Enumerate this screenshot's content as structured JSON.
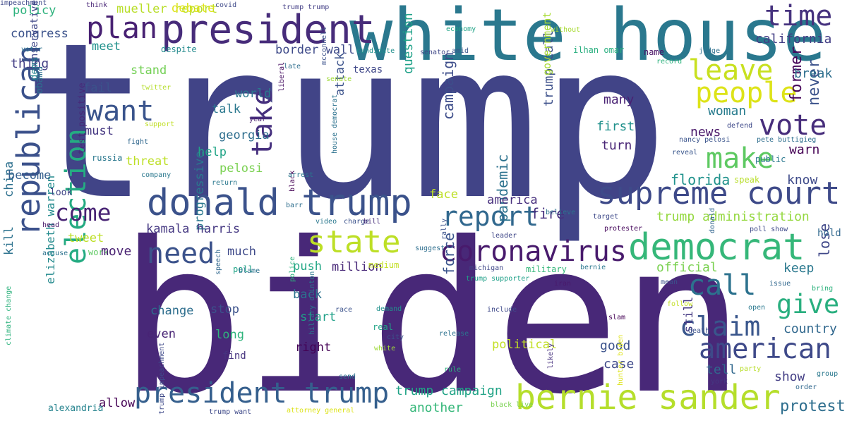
{
  "words": [
    {
      "text": "trump",
      "color": "#414487",
      "vertical": false
    },
    {
      "text": "biden",
      "color": "#482878",
      "vertical": false
    },
    {
      "text": "white house",
      "color": "#2a788e",
      "vertical": false
    },
    {
      "text": "president",
      "color": "#472c7a",
      "vertical": false
    },
    {
      "text": "donald trump",
      "color": "#3b528b",
      "vertical": false
    },
    {
      "text": "supreme court",
      "color": "#3e4a89",
      "vertical": false
    },
    {
      "text": "bernie sander",
      "color": "#b5de2b",
      "vertical": false
    },
    {
      "text": "president trump",
      "color": "#355f8d",
      "vertical": false
    },
    {
      "text": "republican",
      "color": "#3b518b",
      "vertical": true
    },
    {
      "text": "democrat",
      "color": "#35b779",
      "vertical": false
    },
    {
      "text": "coronavirus",
      "color": "#481a6c",
      "vertical": false
    },
    {
      "text": "american",
      "color": "#3e4989",
      "vertical": false
    },
    {
      "text": "time",
      "color": "#46327e",
      "vertical": false
    },
    {
      "text": "plan",
      "color": "#482173",
      "vertical": false
    },
    {
      "text": "people",
      "color": "#dde318",
      "vertical": false
    },
    {
      "text": "vote",
      "color": "#472d7b",
      "vertical": false
    },
    {
      "text": "make",
      "color": "#5ec962",
      "vertical": false
    },
    {
      "text": "call",
      "color": "#2c728e",
      "vertical": false
    },
    {
      "text": "claim",
      "color": "#39568c",
      "vertical": false
    },
    {
      "text": "give",
      "color": "#29af7f",
      "vertical": false
    },
    {
      "text": "report",
      "color": "#31688e",
      "vertical": false
    },
    {
      "text": "state",
      "color": "#bddf26",
      "vertical": false
    },
    {
      "text": "election",
      "color": "#25ab82",
      "vertical": true
    },
    {
      "text": "want",
      "color": "#3a548c",
      "vertical": false
    },
    {
      "text": "need",
      "color": "#3b528b",
      "vertical": false
    },
    {
      "text": "come",
      "color": "#482374",
      "vertical": false
    },
    {
      "text": "take",
      "color": "#46307e",
      "vertical": true
    },
    {
      "text": "leave",
      "color": "#c8e020",
      "vertical": false
    },
    {
      "text": "protest",
      "color": "#2e6e8e",
      "vertical": false
    },
    {
      "text": "country",
      "color": "#31688e",
      "vertical": false
    },
    {
      "text": "former",
      "color": "#450559",
      "vertical": true
    },
    {
      "text": "never",
      "color": "#3b528b",
      "vertical": true
    },
    {
      "text": "california",
      "color": "#433e85",
      "vertical": false
    },
    {
      "text": "break",
      "color": "#2e6f8e",
      "vertical": false
    },
    {
      "text": "florida",
      "color": "#20928c",
      "vertical": false
    },
    {
      "text": "know",
      "color": "#3e4a89",
      "vertical": false
    },
    {
      "text": "warn",
      "color": "#440154",
      "vertical": false
    },
    {
      "text": "woman",
      "color": "#287c8e",
      "vertical": false
    },
    {
      "text": "news",
      "color": "#481769",
      "vertical": false
    },
    {
      "text": "many",
      "color": "#482173",
      "vertical": false
    },
    {
      "text": "first",
      "color": "#21918c",
      "vertical": false
    },
    {
      "text": "turn",
      "color": "#482475",
      "vertical": false
    },
    {
      "text": "trump administration",
      "color": "#95d840",
      "vertical": false
    },
    {
      "text": "official",
      "color": "#7ad151",
      "vertical": false
    },
    {
      "text": "keep",
      "color": "#2a788e",
      "vertical": false
    },
    {
      "text": "lose",
      "color": "#3f4788",
      "vertical": true
    },
    {
      "text": "hold",
      "color": "#31688e",
      "vertical": false
    },
    {
      "text": "still",
      "color": "#443983",
      "vertical": true
    },
    {
      "text": "tell",
      "color": "#31688e",
      "vertical": false
    },
    {
      "text": "show",
      "color": "#433e85",
      "vertical": false
    },
    {
      "text": "good",
      "color": "#3b528b",
      "vertical": false
    },
    {
      "text": "case",
      "color": "#3e4989",
      "vertical": false
    },
    {
      "text": "political",
      "color": "#c2df23",
      "vertical": false
    },
    {
      "text": "trump campaign",
      "color": "#20a386",
      "vertical": false
    },
    {
      "text": "another",
      "color": "#35b779",
      "vertical": false
    },
    {
      "text": "pandemic",
      "color": "#2c728e",
      "vertical": true
    },
    {
      "text": "trump call",
      "color": "#3c4f8a",
      "vertical": true
    },
    {
      "text": "government",
      "color": "#a8db34",
      "vertical": true
    },
    {
      "text": "campaign",
      "color": "#3d4d8a",
      "vertical": true
    },
    {
      "text": "force",
      "color": "#3a548c",
      "vertical": true
    },
    {
      "text": "america",
      "color": "#472f7d",
      "vertical": false
    },
    {
      "text": "fire",
      "color": "#46307e",
      "vertical": false
    },
    {
      "text": "face",
      "color": "#bddf26",
      "vertical": false
    },
    {
      "text": "question",
      "color": "#1fa188",
      "vertical": true
    },
    {
      "text": "attack",
      "color": "#3b528b",
      "vertical": true
    },
    {
      "text": "texas",
      "color": "#3f4788",
      "vertical": false
    },
    {
      "text": "progressive",
      "color": "#2a788e",
      "vertical": true
    },
    {
      "text": "kamala harris",
      "color": "#453882",
      "vertical": false
    },
    {
      "text": "tweet",
      "color": "#bddf26",
      "vertical": false
    },
    {
      "text": "work",
      "color": "#5ec962",
      "vertical": false
    },
    {
      "text": "much",
      "color": "#3e4989",
      "vertical": false
    },
    {
      "text": "push",
      "color": "#22a785",
      "vertical": false
    },
    {
      "text": "poll",
      "color": "#20a486",
      "vertical": false
    },
    {
      "text": "million",
      "color": "#482878",
      "vertical": false
    },
    {
      "text": "back",
      "color": "#2c728e",
      "vertical": false
    },
    {
      "text": "start",
      "color": "#1fa088",
      "vertical": false
    },
    {
      "text": "stop",
      "color": "#3b528b",
      "vertical": false
    },
    {
      "text": "change",
      "color": "#2e6e8e",
      "vertical": false
    },
    {
      "text": "even",
      "color": "#482475",
      "vertical": false
    },
    {
      "text": "long",
      "color": "#2fb47c",
      "vertical": false
    },
    {
      "text": "right",
      "color": "#440154",
      "vertical": false
    },
    {
      "text": "find",
      "color": "#46337f",
      "vertical": false
    },
    {
      "text": "allow",
      "color": "#440154",
      "vertical": false
    },
    {
      "text": "move",
      "color": "#482071",
      "vertical": false
    },
    {
      "text": "elizabeth warren",
      "color": "#238a8d",
      "vertical": true
    },
    {
      "text": "kill",
      "color": "#2c728e",
      "vertical": true
    },
    {
      "text": "china",
      "color": "#2d708e",
      "vertical": true
    },
    {
      "text": "become",
      "color": "#355f8d",
      "vertical": false
    },
    {
      "text": "look",
      "color": "#414487",
      "vertical": false
    },
    {
      "text": "alexandria",
      "color": "#25838e",
      "vertical": false
    },
    {
      "text": "policy",
      "color": "#2db27d",
      "vertical": false
    },
    {
      "text": "congress",
      "color": "#3b528b",
      "vertical": false
    },
    {
      "text": "voter",
      "color": "#2c728e",
      "vertical": false
    },
    {
      "text": "thing",
      "color": "#433e85",
      "vertical": false
    },
    {
      "text": "conservative",
      "color": "#3f4788",
      "vertical": true
    },
    {
      "text": "dems",
      "color": "#25858e",
      "vertical": true
    },
    {
      "text": "obama",
      "color": "#2d708e",
      "vertical": true
    },
    {
      "text": "test positive",
      "color": "#482878",
      "vertical": true
    },
    {
      "text": "russia",
      "color": "#2a788e",
      "vertical": false
    },
    {
      "text": "threat",
      "color": "#bddf26",
      "vertical": false
    },
    {
      "text": "fight",
      "color": "#31688e",
      "vertical": false
    },
    {
      "text": "company",
      "color": "#2a788e",
      "vertical": false
    },
    {
      "text": "must",
      "color": "#453781",
      "vertical": false
    },
    {
      "text": "support",
      "color": "#c0df25",
      "vertical": false
    },
    {
      "text": "fail",
      "color": "#3b528b",
      "vertical": false
    },
    {
      "text": "twitter",
      "color": "#b5de2b",
      "vertical": false
    },
    {
      "text": "stand",
      "color": "#73d055",
      "vertical": false
    },
    {
      "text": "meet",
      "color": "#21918c",
      "vertical": false
    },
    {
      "text": "despite",
      "color": "#238a8d",
      "vertical": false
    },
    {
      "text": "mueller report",
      "color": "#b8de29",
      "vertical": false
    },
    {
      "text": "debate",
      "color": "#dde318",
      "vertical": false
    },
    {
      "text": "think",
      "color": "#482576",
      "vertical": false
    },
    {
      "text": "covid",
      "color": "#3e4989",
      "vertical": false
    },
    {
      "text": "trump trump",
      "color": "#433e85",
      "vertical": false
    },
    {
      "text": "border wall",
      "color": "#3e4a89",
      "vertical": false
    },
    {
      "text": "candidate",
      "color": "#218f8d",
      "vertical": false
    },
    {
      "text": "senator",
      "color": "#3f4788",
      "vertical": false
    },
    {
      "text": "world",
      "color": "#2a788e",
      "vertical": false
    },
    {
      "text": "talk",
      "color": "#2a788e",
      "vertical": false
    },
    {
      "text": "year",
      "color": "#481f70",
      "vertical": false
    },
    {
      "text": "georgia",
      "color": "#2e6e8e",
      "vertical": false
    },
    {
      "text": "help",
      "color": "#20a486",
      "vertical": false
    },
    {
      "text": "pelosi",
      "color": "#7ad151",
      "vertical": false
    },
    {
      "text": "late",
      "color": "#2e6e8e",
      "vertical": false
    },
    {
      "text": "liberal",
      "color": "#471063",
      "vertical": true
    },
    {
      "text": "mcconnell",
      "color": "#3b528b",
      "vertical": true
    },
    {
      "text": "senate",
      "color": "#a0da39",
      "vertical": false
    },
    {
      "text": "house democrat",
      "color": "#2c728e",
      "vertical": true
    },
    {
      "text": "economy",
      "color": "#20a386",
      "vertical": false
    },
    {
      "text": "amid",
      "color": "#39568c",
      "vertical": false
    },
    {
      "text": "ilhan omar",
      "color": "#29af7f",
      "vertical": false
    },
    {
      "text": "name",
      "color": "#471063",
      "vertical": false
    },
    {
      "text": "record",
      "color": "#2db27d",
      "vertical": false
    },
    {
      "text": "judge",
      "color": "#2d708e",
      "vertical": false
    },
    {
      "text": "nancy pelosi",
      "color": "#3a548c",
      "vertical": false
    },
    {
      "text": "pete buttigieg",
      "color": "#2e6e8e",
      "vertical": false
    },
    {
      "text": "reveal",
      "color": "#39568c",
      "vertical": false
    },
    {
      "text": "public",
      "color": "#2a788e",
      "vertical": false
    },
    {
      "text": "defend",
      "color": "#3e4989",
      "vertical": false
    },
    {
      "text": "speak",
      "color": "#b8de29",
      "vertical": false
    },
    {
      "text": "without",
      "color": "#a8db34",
      "vertical": false
    },
    {
      "text": "donald",
      "color": "#32658e",
      "vertical": true
    },
    {
      "text": "poll show",
      "color": "#3e4989",
      "vertical": false
    },
    {
      "text": "protester",
      "color": "#46085c",
      "vertical": false
    },
    {
      "text": "target",
      "color": "#3e4989",
      "vertical": false
    },
    {
      "text": "believe",
      "color": "#2c728e",
      "vertical": false
    },
    {
      "text": "rally",
      "color": "#3b528b",
      "vertical": true
    },
    {
      "text": "leader",
      "color": "#3f4788",
      "vertical": false
    },
    {
      "text": "michigan",
      "color": "#3f4788",
      "vertical": false
    },
    {
      "text": "military",
      "color": "#35b779",
      "vertical": false
    },
    {
      "text": "bernie",
      "color": "#2a788e",
      "vertical": false
    },
    {
      "text": "trump supporter",
      "color": "#1fa088",
      "vertical": false
    },
    {
      "text": "iran",
      "color": "#481a6c",
      "vertical": false
    },
    {
      "text": "mean",
      "color": "#3b528b",
      "vertical": false
    },
    {
      "text": "issue",
      "color": "#31688e",
      "vertical": false
    },
    {
      "text": "bring",
      "color": "#2db27d",
      "vertical": false
    },
    {
      "text": "follow",
      "color": "#c2df23",
      "vertical": false
    },
    {
      "text": "open",
      "color": "#2a788e",
      "vertical": false
    },
    {
      "text": "slam",
      "color": "#440154",
      "vertical": false
    },
    {
      "text": "include",
      "color": "#3e4989",
      "vertical": false
    },
    {
      "text": "demand",
      "color": "#21918c",
      "vertical": false
    },
    {
      "text": "release",
      "color": "#2c728e",
      "vertical": false
    },
    {
      "text": "rule",
      "color": "#2db27d",
      "vertical": false
    },
    {
      "text": "likely",
      "color": "#46307e",
      "vertical": true
    },
    {
      "text": "death",
      "color": "#3b528b",
      "vertical": false
    },
    {
      "text": "hunter biden",
      "color": "#dde318",
      "vertical": true
    },
    {
      "text": "york",
      "color": "#453781",
      "vertical": false
    },
    {
      "text": "party",
      "color": "#b8de29",
      "vertical": false
    },
    {
      "text": "group",
      "color": "#2a788e",
      "vertical": false
    },
    {
      "text": "order",
      "color": "#31688e",
      "vertical": false
    },
    {
      "text": "black live",
      "color": "#7ad151",
      "vertical": false
    },
    {
      "text": "send",
      "color": "#2c728e",
      "vertical": false
    },
    {
      "text": "race",
      "color": "#3b528b",
      "vertical": false
    },
    {
      "text": "hillary clinton",
      "color": "#2a788e",
      "vertical": true
    },
    {
      "text": "city",
      "color": "#3b528b",
      "vertical": false
    },
    {
      "text": "white",
      "color": "#a0da39",
      "vertical": false
    },
    {
      "text": "real",
      "color": "#20a486",
      "vertical": false
    },
    {
      "text": "medium",
      "color": "#c2df23",
      "vertical": false
    },
    {
      "text": "suggest",
      "color": "#2e6e8e",
      "vertical": false
    },
    {
      "text": "police",
      "color": "#2db27d",
      "vertical": true
    },
    {
      "text": "blame",
      "color": "#2c728e",
      "vertical": false
    },
    {
      "text": "speech",
      "color": "#31688e",
      "vertical": true
    },
    {
      "text": "black",
      "color": "#440154",
      "vertical": true
    },
    {
      "text": "barr",
      "color": "#2e6e8e",
      "vertical": false
    },
    {
      "text": "arrest",
      "color": "#2a788e",
      "vertical": false
    },
    {
      "text": "return",
      "color": "#2a788e",
      "vertical": false
    },
    {
      "text": "video",
      "color": "#2a788e",
      "vertical": false
    },
    {
      "text": "charge",
      "color": "#3b528b",
      "vertical": false
    },
    {
      "text": "bill",
      "color": "#472c7a",
      "vertical": false
    },
    {
      "text": "head",
      "color": "#481769",
      "vertical": false
    },
    {
      "text": "accuse",
      "color": "#2c728e",
      "vertical": false
    },
    {
      "text": "climate change",
      "color": "#2db27d",
      "vertical": true
    },
    {
      "text": "trump impeachment",
      "color": "#3e4989",
      "vertical": true
    },
    {
      "text": "trump want",
      "color": "#3e4989",
      "vertical": false
    },
    {
      "text": "attorney general",
      "color": "#dde318",
      "vertical": false
    },
    {
      "text": "impeachment",
      "color": "#3e4989",
      "vertical": false
    }
  ]
}
